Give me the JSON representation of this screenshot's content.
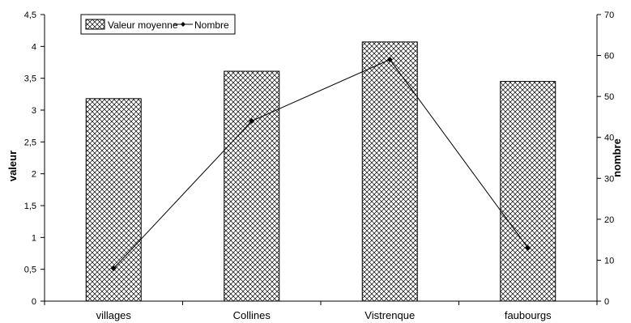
{
  "chart_data": {
    "type": "bar",
    "categories": [
      "villages",
      "Collines",
      "Vistrenque",
      "faubourgs"
    ],
    "series": [
      {
        "name": "Valeur moyenne",
        "type": "bar",
        "axis": "left",
        "values": [
          3.18,
          3.61,
          4.07,
          3.45
        ]
      },
      {
        "name": "Nombre",
        "type": "line",
        "axis": "right",
        "values": [
          8,
          44,
          59,
          13
        ]
      }
    ],
    "ylabel": "valeur",
    "y2label": "nombre",
    "ylim": [
      0,
      4.5
    ],
    "y2lim": [
      0,
      70
    ],
    "yticks": [
      "0",
      "0,5",
      "1",
      "1,5",
      "2",
      "2,5",
      "3",
      "3,5",
      "4",
      "4,5"
    ],
    "y2ticks": [
      "0",
      "10",
      "20",
      "30",
      "40",
      "50",
      "60",
      "70"
    ],
    "legend_position": "top-left",
    "grid": false,
    "bar_pattern": "crosshatch",
    "line_color": "#000000",
    "bar_edge_color": "#000000"
  }
}
